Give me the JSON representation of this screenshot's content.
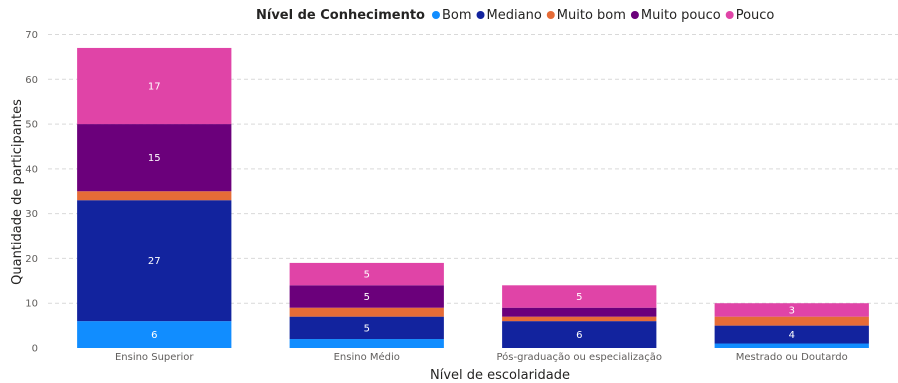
{
  "chart_data": {
    "type": "bar",
    "stacked": true,
    "legend_title": "Nível de Conhecimento",
    "legend_position": "top",
    "categories": [
      "Ensino Superior",
      "Ensino Médio",
      "Pós-graduação ou especialização",
      "Mestrado ou Doutardo"
    ],
    "series": [
      {
        "name": "Bom",
        "color": "#118DFF",
        "values": [
          6,
          2,
          0,
          1
        ]
      },
      {
        "name": "Mediano",
        "color": "#12239E",
        "values": [
          27,
          5,
          6,
          4
        ]
      },
      {
        "name": "Muito bom",
        "color": "#E66C37",
        "values": [
          2,
          2,
          1,
          2
        ]
      },
      {
        "name": "Muito pouco",
        "color": "#6B007B",
        "values": [
          15,
          5,
          2,
          0
        ]
      },
      {
        "name": "Pouco",
        "color": "#E044A7",
        "values": [
          17,
          5,
          5,
          3
        ]
      }
    ],
    "data_labels": [
      {
        "category": 0,
        "series": 0,
        "text": "6"
      },
      {
        "category": 0,
        "series": 1,
        "text": "27"
      },
      {
        "category": 0,
        "series": 3,
        "text": "15"
      },
      {
        "category": 0,
        "series": 4,
        "text": "17"
      },
      {
        "category": 1,
        "series": 1,
        "text": "5"
      },
      {
        "category": 1,
        "series": 3,
        "text": "5"
      },
      {
        "category": 1,
        "series": 4,
        "text": "5"
      },
      {
        "category": 2,
        "series": 1,
        "text": "6"
      },
      {
        "category": 2,
        "series": 4,
        "text": "5"
      },
      {
        "category": 3,
        "series": 1,
        "text": "4"
      },
      {
        "category": 3,
        "series": 4,
        "text": "3"
      }
    ],
    "xlabel": "Nível de escolaridade",
    "ylabel": "Quantidade de participantes",
    "ylim": [
      0,
      70
    ],
    "yticks": [
      "0",
      "10",
      "20",
      "30",
      "40",
      "50",
      "60",
      "70"
    ],
    "grid": true
  }
}
